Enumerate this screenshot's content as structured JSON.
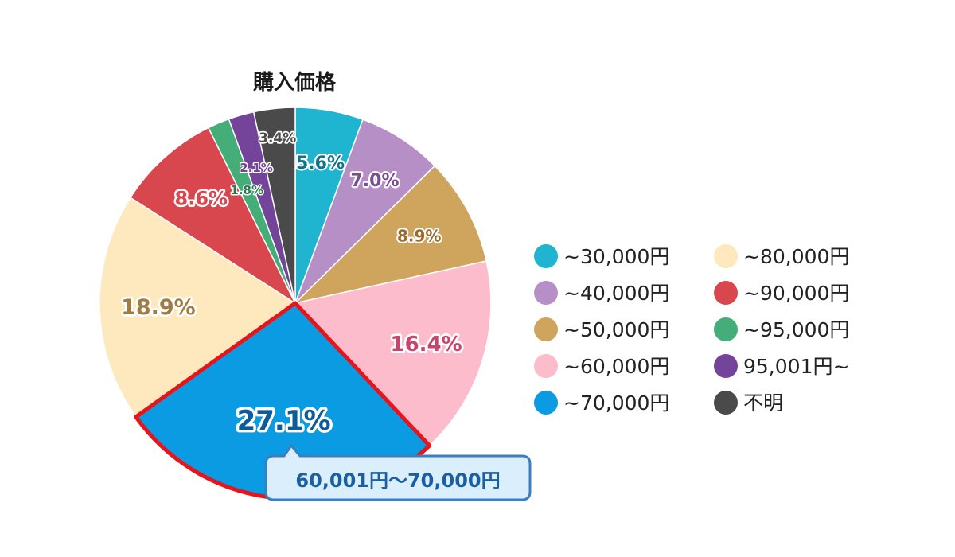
{
  "chart_data": {
    "type": "pie",
    "title": "購入価格",
    "categories": [
      "~30,000円",
      "~40,000円",
      "~50,000円",
      "~60,000円",
      "~70,000円",
      "~80,000円",
      "~90,000円",
      "~95,000円",
      "95,001円~",
      "不明"
    ],
    "values": [
      5.6,
      7.0,
      8.9,
      16.4,
      27.1,
      18.9,
      8.6,
      1.8,
      2.1,
      3.4
    ],
    "labels": [
      "5.6%",
      "7.0%",
      "8.9%",
      "16.4%",
      "27.1%",
      "18.9%",
      "8.6%",
      "1.8%",
      "2.1%",
      "3.4%"
    ],
    "colors": [
      "#1fb5d0",
      "#b78fc7",
      "#cfa55e",
      "#fdbccb",
      "#0a9be2",
      "#fde9bd",
      "#d8464e",
      "#44ad78",
      "#74449b",
      "#4a4a4a"
    ],
    "label_colors": [
      "#0d7489",
      "#7a4d97",
      "#9a6c2d",
      "#c7466f",
      "#0d5b9a",
      "#a07b44",
      "#d8464e",
      "#2a7a52",
      "#74449b",
      "#4a4a4a"
    ],
    "highlighted_index": 4,
    "highlight_color": "#e8141c",
    "legend_placement": "right",
    "tooltip": {
      "text": "60,001円～70,000円",
      "border_color": "#3a7fc1",
      "fill_color": "#daeefb"
    }
  }
}
